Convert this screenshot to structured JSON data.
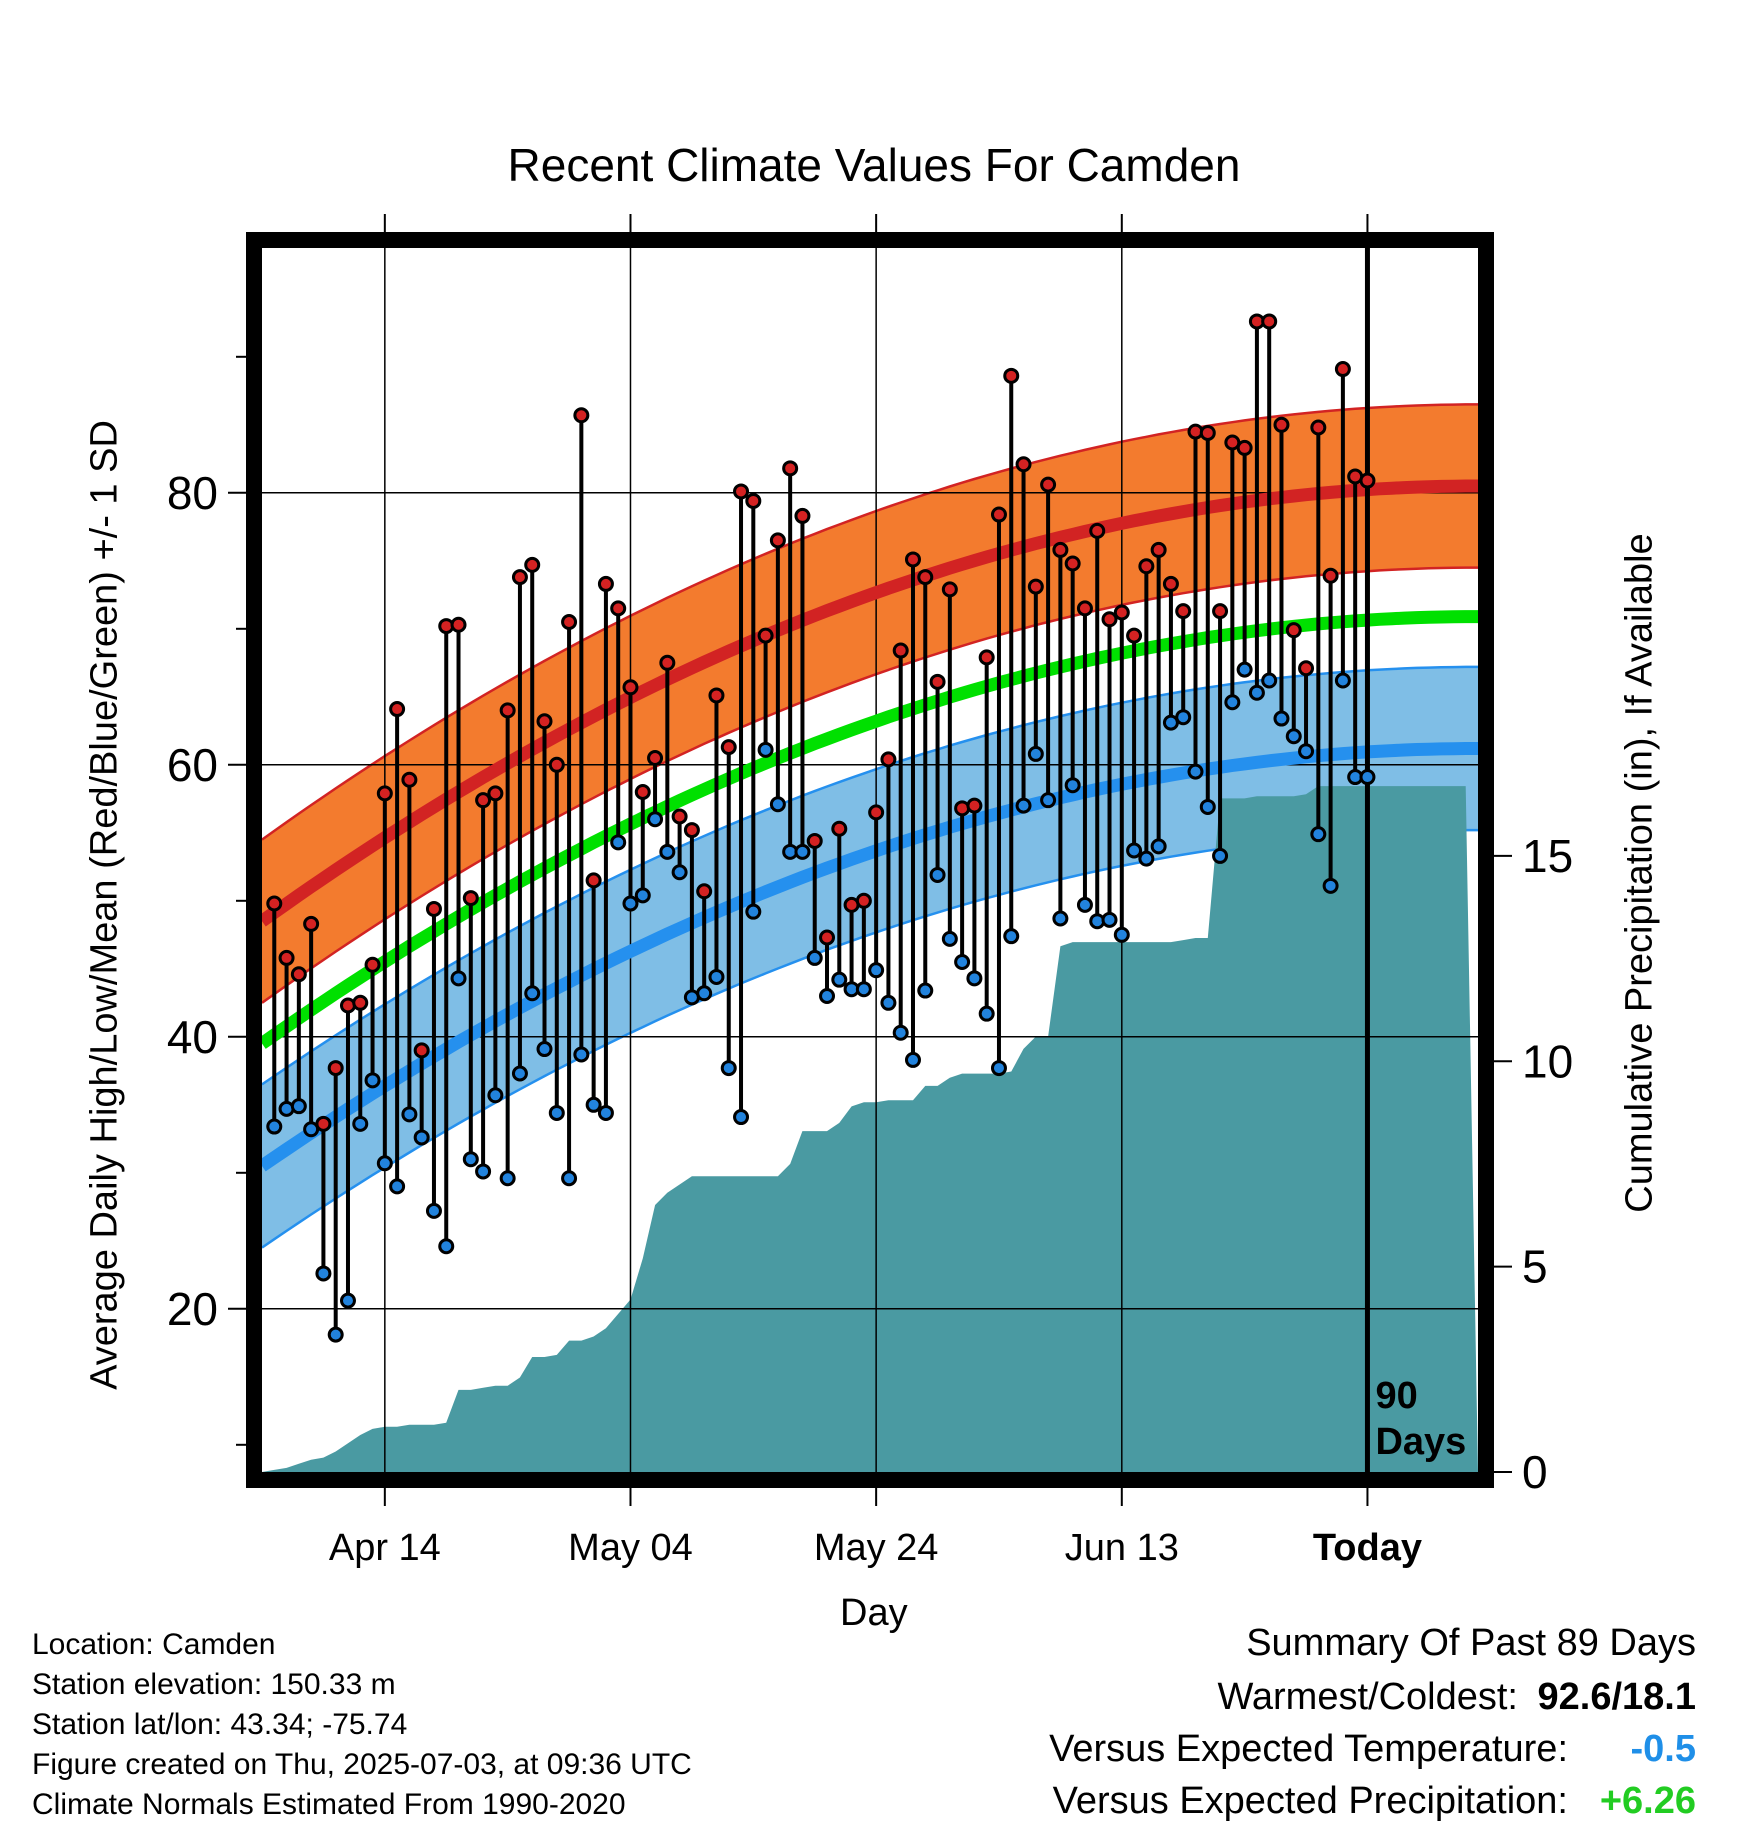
{
  "chart_data": {
    "type": "line",
    "title": "Recent Climate Values For Camden",
    "xlabel": "Day",
    "ylabel": "Average Daily High/Low/Mean (Red/Blue/Green) +/- 1 SD",
    "y2label": "Cumulative Precipitation (in), If Available",
    "x_tick_labels": [
      "Apr 14",
      "May 04",
      "May 24",
      "Jun 13",
      "Today"
    ],
    "y_ticks": [
      20,
      40,
      60,
      80
    ],
    "y2_ticks": [
      0,
      5,
      10,
      15
    ],
    "ylim": [
      8,
      98
    ],
    "y2lim": [
      0,
      29.8
    ],
    "xlim_days_before_today": [
      -90,
      9
    ],
    "marker_label": "90 Days",
    "normals": {
      "high_mean": [
        48.5,
        80.5
      ],
      "high_sd": 6,
      "low_mean": [
        30.5,
        61.2
      ],
      "low_sd": 6,
      "mean": [
        39.5,
        70.9
      ]
    },
    "daily_high": [
      49.8,
      45.8,
      44.6,
      48.3,
      33.6,
      37.7,
      42.3,
      42.5,
      45.3,
      57.9,
      64.1,
      58.9,
      39.0,
      49.4,
      70.2,
      70.3,
      50.2,
      57.4,
      57.9,
      64.0,
      73.8,
      74.7,
      63.2,
      60.0,
      70.5,
      85.7,
      51.5,
      73.3,
      71.5,
      65.7,
      58.0,
      60.5,
      67.5,
      56.2,
      55.2,
      50.7,
      65.1,
      61.3,
      80.1,
      79.4,
      69.5,
      76.5,
      81.8,
      78.3,
      54.4,
      47.3,
      55.3,
      49.7,
      50.0,
      56.5,
      60.4,
      68.4,
      75.1,
      73.8,
      66.1,
      72.9,
      56.8,
      57.0,
      67.9,
      78.4,
      88.6,
      82.1,
      73.1,
      80.6,
      75.8,
      74.8,
      71.5,
      77.2,
      70.7,
      71.2,
      69.5,
      74.6,
      75.8,
      73.3,
      71.3,
      84.5,
      84.4,
      71.3,
      83.7,
      83.3,
      92.6,
      92.6,
      85.0,
      69.9,
      67.1,
      84.8,
      73.9,
      89.1,
      81.2,
      80.9
    ],
    "daily_low": [
      33.4,
      34.7,
      34.9,
      33.2,
      22.6,
      18.1,
      20.6,
      33.6,
      36.8,
      30.7,
      29.0,
      34.3,
      32.6,
      27.2,
      24.6,
      44.3,
      31.0,
      30.1,
      35.7,
      29.6,
      37.3,
      43.2,
      39.1,
      34.4,
      29.6,
      38.7,
      35.0,
      34.4,
      54.3,
      49.8,
      50.4,
      56.0,
      53.6,
      52.1,
      42.9,
      43.2,
      44.4,
      37.7,
      34.1,
      49.2,
      61.1,
      57.1,
      53.6,
      53.6,
      45.8,
      43.0,
      44.2,
      43.5,
      43.5,
      44.9,
      42.5,
      40.3,
      38.3,
      43.4,
      51.9,
      47.2,
      45.5,
      44.3,
      41.7,
      37.7,
      47.4,
      57.0,
      60.8,
      57.4,
      48.7,
      58.5,
      49.7,
      48.5,
      48.6,
      47.5,
      53.7,
      53.1,
      54.0,
      63.1,
      63.5,
      59.5,
      56.9,
      53.3,
      64.6,
      67.0,
      65.3,
      66.2,
      63.4,
      62.1,
      61.0,
      54.9,
      51.1,
      66.2,
      59.1,
      59.1
    ],
    "cumulative_precip": [
      0.0,
      0.05,
      0.1,
      0.2,
      0.3,
      0.35,
      0.5,
      0.7,
      0.9,
      1.05,
      1.1,
      1.1,
      1.15,
      1.15,
      1.15,
      1.2,
      2.0,
      2.0,
      2.05,
      2.1,
      2.1,
      2.3,
      2.8,
      2.8,
      2.85,
      3.2,
      3.2,
      3.3,
      3.5,
      3.85,
      4.2,
      5.2,
      6.5,
      6.8,
      7.0,
      7.2,
      7.2,
      7.2,
      7.2,
      7.2,
      7.2,
      7.2,
      7.2,
      7.5,
      8.3,
      8.3,
      8.3,
      8.5,
      8.9,
      9.0,
      9.0,
      9.05,
      9.05,
      9.05,
      9.4,
      9.4,
      9.6,
      9.7,
      9.7,
      9.7,
      9.7,
      9.75,
      10.3,
      10.6,
      10.6,
      12.8,
      12.9,
      12.9,
      12.9,
      12.9,
      12.9,
      12.9,
      12.9,
      12.9,
      12.9,
      12.95,
      13.0,
      13.0,
      16.4,
      16.4,
      16.4,
      16.45,
      16.45,
      16.45,
      16.45,
      16.5,
      16.7,
      16.7,
      16.7,
      16.7,
      16.7,
      16.7,
      16.7,
      16.7,
      16.7,
      16.7,
      16.7,
      16.7,
      16.7
    ],
    "colors": {
      "high_band": "#f37b2e",
      "high_mean": "#d22323",
      "low_band": "#7fbee6",
      "low_mean": "#2590ee",
      "mean": "#00e000",
      "precip": "#4a9aa2",
      "high_marker": "#d42222",
      "low_marker": "#2283dd"
    }
  },
  "info": {
    "location": "Location: Camden",
    "elevation": "Station elevation: 150.33 m",
    "latlon": "Station lat/lon: 43.34; -75.74",
    "created": "Figure created on Thu, 2025-07-03, at 09:36 UTC",
    "normals": "Climate Normals Estimated From 1990-2020"
  },
  "summary": {
    "heading": "Summary Of Past 89 Days",
    "warm_cold_label": "Warmest/Coldest:",
    "warm_cold_value": "92.6/18.1",
    "temp_label": "Versus Expected Temperature:",
    "temp_value": "-0.5",
    "temp_color": "#1f8fe8",
    "precip_label": "Versus Expected Precipitation:",
    "precip_value": "+6.26",
    "precip_color": "#22cc22"
  }
}
